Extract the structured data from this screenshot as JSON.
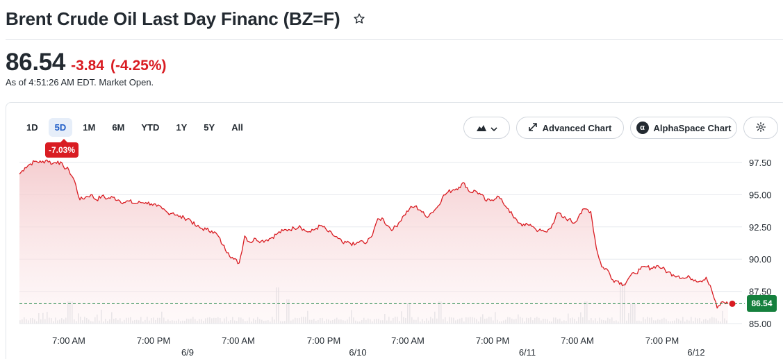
{
  "header": {
    "title": "Brent Crude Oil Last Day Financ (BZ=F)",
    "star_icon": "star-outline-icon"
  },
  "quote": {
    "price": "86.54",
    "change": "-3.84",
    "change_percent": "(-4.25%)",
    "as_of": "As of 4:51:26 AM EDT. Market Open.",
    "change_color": "#d91c22"
  },
  "toolbar": {
    "ranges": [
      "1D",
      "5D",
      "1M",
      "6M",
      "YTD",
      "1Y",
      "5Y",
      "All"
    ],
    "active_range": "5D",
    "performance_badge": "-7.03%",
    "chart_type_icon": "mountain-chart-icon",
    "advanced_chart_label": "Advanced Chart",
    "alphaspace_label": "AlphaSpace Chart",
    "settings_icon": "gear-icon"
  },
  "chart_data": {
    "type": "area",
    "title": "",
    "xlabel": "",
    "ylabel": "",
    "ylim": [
      85.0,
      97.5
    ],
    "y_ticks": [
      "97.50",
      "95.00",
      "92.50",
      "90.00",
      "87.50",
      "85.00"
    ],
    "x_tick_labels": [
      "7:00 AM",
      "7:00 PM",
      "7:00 AM",
      "7:00 PM",
      "7:00 AM",
      "7:00 PM",
      "7:00 AM",
      "7:00 PM"
    ],
    "day_labels": [
      "6/9",
      "6/10",
      "6/11",
      "6/12"
    ],
    "last_price": 86.54,
    "last_price_label": "86.54",
    "line_color": "#d91c22",
    "last_tag_color": "#15803d",
    "grid": true,
    "series": [
      {
        "values": [
          96.6,
          97.1,
          97.4,
          97.6,
          97.5,
          97.7,
          97.4,
          97.6,
          97.2,
          96.9,
          96.1,
          94.6,
          94.8,
          95.0,
          94.6,
          94.9,
          94.7,
          94.8,
          94.6,
          94.4,
          94.5,
          94.3,
          94.4,
          94.4,
          94.3,
          94.1,
          93.9,
          93.6,
          93.6,
          93.3,
          93.2,
          93.1,
          92.6,
          92.4,
          92.3,
          92.2,
          91.9,
          91.1,
          90.5,
          90.0,
          89.7,
          91.8,
          91.3,
          91.6,
          91.4,
          91.5,
          91.7,
          92.0,
          92.2,
          92.3,
          92.4,
          92.6,
          92.2,
          92.1,
          92.4,
          92.6,
          92.2,
          91.9,
          91.6,
          91.2,
          91.3,
          91.1,
          91.4,
          91.2,
          91.7,
          92.9,
          93.2,
          92.6,
          92.3,
          92.8,
          93.4,
          93.9,
          94.1,
          93.8,
          93.3,
          93.6,
          94.0,
          94.8,
          95.2,
          95.4,
          95.6,
          95.9,
          95.2,
          95.3,
          95.0,
          94.5,
          94.6,
          94.9,
          94.4,
          93.9,
          93.2,
          92.8,
          92.6,
          92.7,
          92.3,
          92.2,
          92.1,
          92.7,
          93.6,
          93.2,
          93.1,
          92.8,
          93.5,
          93.9,
          93.7,
          90.9,
          89.4,
          89.2,
          88.4,
          88.3,
          88.0,
          88.6,
          88.9,
          89.2,
          89.4,
          89.3,
          89.5,
          89.3,
          89.0,
          88.8,
          88.7,
          88.5,
          88.6,
          88.4,
          88.3,
          88.6,
          87.6,
          86.2,
          86.7,
          86.54
        ]
      }
    ]
  }
}
